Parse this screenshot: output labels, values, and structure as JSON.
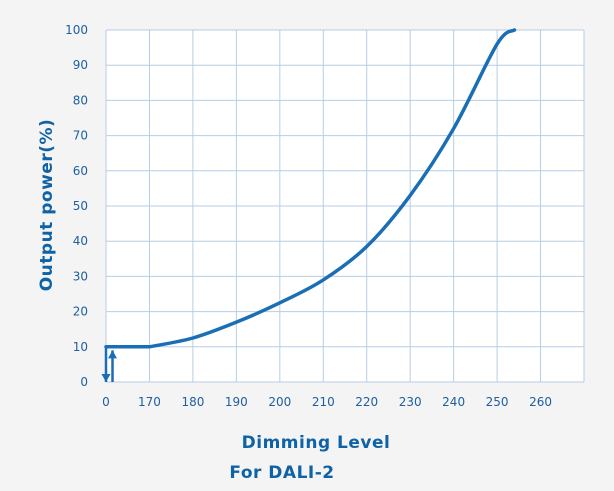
{
  "chart_data": {
    "type": "line",
    "ylabel": "Output power(%)",
    "xlabel_lines": [
      "Dimming Level",
      "For DALI-2"
    ],
    "x_tick_labels": [
      "0",
      "170",
      "180",
      "190",
      "200",
      "210",
      "220",
      "230",
      "240",
      "250",
      "260"
    ],
    "x_tick_values": [
      0,
      170,
      180,
      190,
      200,
      210,
      220,
      230,
      240,
      250,
      260
    ],
    "y_tick_labels": [
      "0",
      "10",
      "20",
      "30",
      "40",
      "50",
      "60",
      "70",
      "80",
      "90",
      "100"
    ],
    "y_tick_values": [
      0,
      10,
      20,
      30,
      40,
      50,
      60,
      70,
      80,
      90,
      100
    ],
    "ylim": [
      0,
      100
    ],
    "grid": true,
    "line_color": "#1a6eb5",
    "grid_color": "#b7cde6",
    "series": [
      {
        "x": [
          0,
          170,
          180,
          190,
          200,
          210,
          220,
          230,
          240,
          250,
          254
        ],
        "y": [
          10,
          10,
          12.5,
          17,
          22.5,
          29,
          38.5,
          53,
          72,
          96,
          100
        ]
      }
    ],
    "annotations": [
      {
        "type": "arrow",
        "direction": "down",
        "x": 0,
        "from": 10,
        "to": 0
      },
      {
        "type": "arrow",
        "direction": "up",
        "x": 2,
        "from": 0,
        "to": 9
      }
    ]
  }
}
